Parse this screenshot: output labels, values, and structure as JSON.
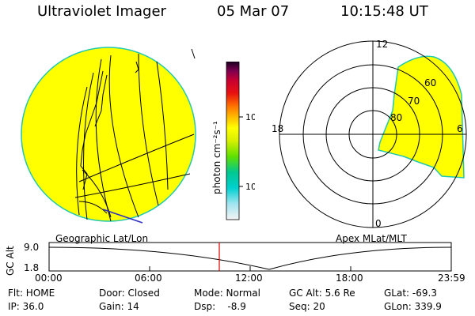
{
  "header": {
    "instrument": "Ultraviolet Imager",
    "date": "05 Mar 07",
    "time": "10:15:48 UT"
  },
  "left_panel": {
    "caption": "Geographic Lat/Lon"
  },
  "right_panel": {
    "caption": "Apex MLat/MLT",
    "mlt_labels": [
      "12",
      "18",
      "6",
      "0"
    ],
    "mlat_labels": [
      "60",
      "70",
      "80"
    ]
  },
  "colorbar": {
    "unit_label": "photon cm⁻²s⁻¹",
    "tick_labels": [
      "100",
      "10"
    ],
    "scale": "log",
    "colors": [
      "#f4f4f4",
      "#a0e4f0",
      "#00d0d0",
      "#00c890",
      "#60e000",
      "#d8f000",
      "#ffff00",
      "#ffb000",
      "#ff7000",
      "#e81010",
      "#c80030",
      "#800050",
      "#1a0020"
    ]
  },
  "timeline": {
    "axis_label": "GC Alt",
    "y_ticks": [
      "9.0",
      "1.8"
    ],
    "x_ticks": [
      "00:00",
      "06:00",
      "12:00",
      "18:00",
      "23:59"
    ],
    "marker_time": "10:15",
    "marker_color": "#e00000"
  },
  "status": {
    "row1": [
      {
        "key": "flt",
        "text": "Flt: HOME"
      },
      {
        "key": "door",
        "text": "Door: Closed"
      },
      {
        "key": "mode",
        "text": "Mode: Normal"
      },
      {
        "key": "gcalt",
        "text": "GC Alt: 5.6 Re"
      },
      {
        "key": "glat",
        "text": "GLat: -69.3"
      }
    ],
    "row2": [
      {
        "key": "ip",
        "text": "IP: 36.0"
      },
      {
        "key": "gain",
        "text": "Gain: 14"
      },
      {
        "key": "dsp",
        "text": "Dsp:    -8.9"
      },
      {
        "key": "seq",
        "text": "Seq: 20"
      },
      {
        "key": "glon",
        "text": "GLon: 339.9"
      }
    ]
  },
  "colors": {
    "emission_fill": "#ffff00",
    "emission_edge": "#20c8b0",
    "coastline": "#000000",
    "terminator": "#3030c0"
  }
}
